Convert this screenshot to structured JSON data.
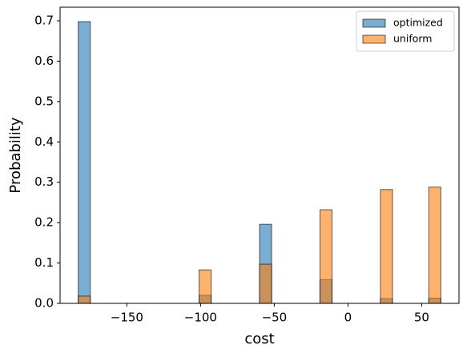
{
  "chart_data": {
    "type": "histogram",
    "x_label": "cost",
    "y_label": "Probability",
    "bins": [
      -183,
      -174.8,
      -166.6,
      -158.4,
      -150.2,
      -142,
      -133.8,
      -125.6,
      -117.4,
      -109.2,
      -101,
      -92.8,
      -84.6,
      -76.4,
      -68.2,
      -60,
      -51.8,
      -43.6,
      -35.4,
      -27.2,
      -19,
      -10.8,
      -2.6,
      5.6,
      13.8,
      22,
      30.2,
      38.4,
      46.6,
      54.8,
      63
    ],
    "series": [
      {
        "name": "optimized",
        "color": "#1f77b4",
        "values": [
          0.698,
          0,
          0,
          0,
          0,
          0,
          0,
          0,
          0,
          0,
          0.02,
          0,
          0,
          0,
          0,
          0.196,
          0,
          0,
          0,
          0,
          0.059,
          0,
          0,
          0,
          0,
          0.012,
          0,
          0,
          0,
          0.013
        ]
      },
      {
        "name": "uniform",
        "color": "#ff7f0e",
        "values": [
          0.018,
          0,
          0,
          0,
          0,
          0,
          0,
          0,
          0,
          0,
          0.083,
          0,
          0,
          0,
          0,
          0.097,
          0,
          0,
          0,
          0,
          0.232,
          0,
          0,
          0,
          0,
          0.282,
          0,
          0,
          0,
          0.288
        ]
      }
    ],
    "xlim": [
      -195.3,
      75.3
    ],
    "ylim": [
      0,
      0.7337
    ],
    "xticks": [
      {
        "value": -150,
        "label": "−150"
      },
      {
        "value": -100,
        "label": "−100"
      },
      {
        "value": -50,
        "label": "−50"
      },
      0,
      50
    ],
    "yticks": [
      {
        "value": 0,
        "label": "0.0"
      },
      0.1,
      0.2,
      0.3,
      0.4,
      0.5,
      0.6,
      0.7
    ],
    "legend": "upper right"
  }
}
